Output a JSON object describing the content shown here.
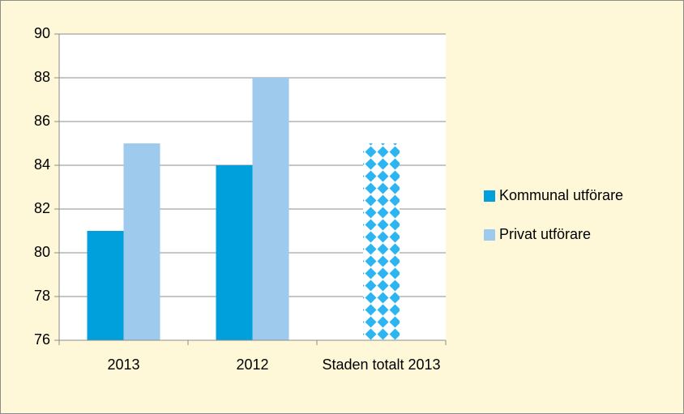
{
  "chart_data": {
    "type": "bar",
    "categories": [
      "2013",
      "2012",
      "Staden totalt 2013"
    ],
    "series": [
      {
        "name": "Kommunal utförare",
        "color": "#00a0dc",
        "values": [
          81,
          84,
          null
        ]
      },
      {
        "name": "Privat utförare",
        "color": "#9dcaed",
        "values": [
          85,
          88,
          null
        ]
      },
      {
        "color": "#2cb5f0",
        "pattern": "diamond",
        "values": [
          null,
          null,
          85
        ]
      }
    ],
    "ylim": [
      76,
      90
    ],
    "yticks": [
      76,
      78,
      80,
      82,
      84,
      86,
      88,
      90
    ],
    "grid": true,
    "legend": "right"
  }
}
